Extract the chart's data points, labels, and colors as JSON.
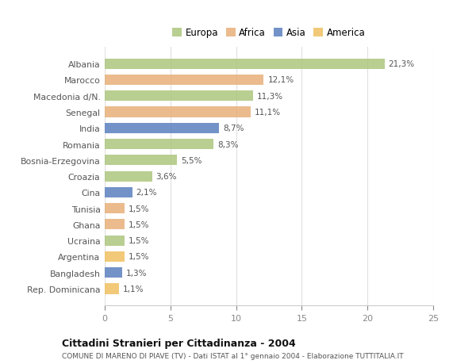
{
  "categories": [
    "Albania",
    "Marocco",
    "Macedonia d/N.",
    "Senegal",
    "India",
    "Romania",
    "Bosnia-Erzegovina",
    "Croazia",
    "Cina",
    "Tunisia",
    "Ghana",
    "Ucraina",
    "Argentina",
    "Bangladesh",
    "Rep. Dominicana"
  ],
  "values": [
    21.3,
    12.1,
    11.3,
    11.1,
    8.7,
    8.3,
    5.5,
    3.6,
    2.1,
    1.5,
    1.5,
    1.5,
    1.5,
    1.3,
    1.1
  ],
  "labels": [
    "21,3%",
    "12,1%",
    "11,3%",
    "11,1%",
    "8,7%",
    "8,3%",
    "5,5%",
    "3,6%",
    "2,1%",
    "1,5%",
    "1,5%",
    "1,5%",
    "1,5%",
    "1,3%",
    "1,1%"
  ],
  "colors": [
    "#adc67e",
    "#e8b07a",
    "#adc67e",
    "#e8b07a",
    "#5b7fbf",
    "#adc67e",
    "#adc67e",
    "#adc67e",
    "#5b7fbf",
    "#e8b07a",
    "#e8b07a",
    "#adc67e",
    "#f0c060",
    "#5b7fbf",
    "#f0c060"
  ],
  "legend_labels": [
    "Europa",
    "Africa",
    "Asia",
    "America"
  ],
  "legend_colors": [
    "#adc67e",
    "#e8b07a",
    "#5b7fbf",
    "#f0c060"
  ],
  "title": "Cittadini Stranieri per Cittadinanza - 2004",
  "subtitle": "COMUNE DI MARENO DI PIAVE (TV) - Dati ISTAT al 1° gennaio 2004 - Elaborazione TUTTITALIA.IT",
  "xlim": [
    0,
    25
  ],
  "xticks": [
    0,
    5,
    10,
    15,
    20,
    25
  ],
  "bg_color": "#ffffff",
  "bar_height": 0.65
}
